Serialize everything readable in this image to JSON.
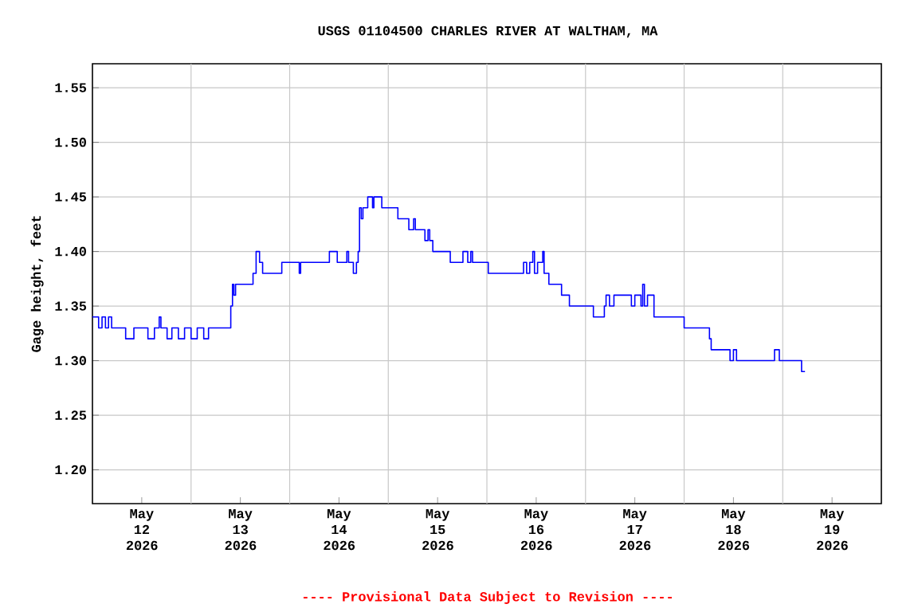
{
  "chart_data": {
    "type": "step",
    "title": "USGS 01104500 CHARLES RIVER AT WALTHAM, MA",
    "ylabel": "Gage height, feet",
    "annotations": [
      "---- Provisional Data Subject to Revision ----"
    ],
    "xlim": [
      "2026-05-12T00:00",
      "2026-05-20T00:00"
    ],
    "xticks": [
      {
        "value": "2026-05-12T12:00",
        "label": "May 12 2026"
      },
      {
        "value": "2026-05-13T12:00",
        "label": "May 13 2026"
      },
      {
        "value": "2026-05-14T12:00",
        "label": "May 14 2026"
      },
      {
        "value": "2026-05-15T12:00",
        "label": "May 15 2026"
      },
      {
        "value": "2026-05-16T12:00",
        "label": "May 16 2026"
      },
      {
        "value": "2026-05-17T12:00",
        "label": "May 17 2026"
      },
      {
        "value": "2026-05-18T12:00",
        "label": "May 18 2026"
      },
      {
        "value": "2026-05-19T12:00",
        "label": "May 19 2026"
      },
      {
        "value": "2026-05-13T00:00",
        "label": null
      },
      {
        "value": "2026-05-14T00:00",
        "label": null
      },
      {
        "value": "2026-05-15T00:00",
        "label": null
      },
      {
        "value": "2026-05-16T00:00",
        "label": null
      },
      {
        "value": "2026-05-17T00:00",
        "label": null
      },
      {
        "value": "2026-05-18T00:00",
        "label": null
      },
      {
        "value": "2026-05-19T00:00",
        "label": null
      }
    ],
    "ylim": [
      1.169,
      1.572
    ],
    "yticks": [
      {
        "value": 1.2,
        "label": "1.20"
      },
      1.25,
      {
        "value": 1.3,
        "label": "1.30"
      },
      1.35,
      {
        "value": 1.4,
        "label": "1.40"
      },
      1.45,
      {
        "value": 1.5,
        "label": "1.50"
      },
      1.55
    ],
    "grid": true,
    "line_style": "solid",
    "series": [
      {
        "color": "#0000ff",
        "x": [
          "2026-05-12T00:00",
          "2026-05-12T01:30",
          "2026-05-12T02:20",
          "2026-05-12T03:10",
          "2026-05-12T03:55",
          "2026-05-12T04:40",
          "2026-05-12T08:05",
          "2026-05-12T10:05",
          "2026-05-12T13:30",
          "2026-05-12T15:05",
          "2026-05-12T16:15",
          "2026-05-12T16:40",
          "2026-05-12T18:10",
          "2026-05-12T19:20",
          "2026-05-12T20:55",
          "2026-05-12T22:25",
          "2026-05-13T00:00",
          "2026-05-13T01:30",
          "2026-05-13T03:05",
          "2026-05-13T04:15",
          "2026-05-13T09:40",
          "2026-05-13T10:05",
          "2026-05-13T10:25",
          "2026-05-13T10:50",
          "2026-05-13T15:05",
          "2026-05-13T15:50",
          "2026-05-13T16:40",
          "2026-05-13T17:25",
          "2026-05-13T22:05",
          "2026-05-14T02:20",
          "2026-05-14T02:40",
          "2026-05-14T09:40",
          "2026-05-14T11:35",
          "2026-05-14T13:55",
          "2026-05-14T14:20",
          "2026-05-14T15:30",
          "2026-05-14T16:15",
          "2026-05-14T16:40",
          "2026-05-14T17:00",
          "2026-05-14T17:25",
          "2026-05-14T17:50",
          "2026-05-14T19:00",
          "2026-05-14T20:10",
          "2026-05-14T20:30",
          "2026-05-14T22:25",
          "2026-05-15T02:20",
          "2026-05-15T05:00",
          "2026-05-15T06:10",
          "2026-05-15T06:35",
          "2026-05-15T08:55",
          "2026-05-15T09:40",
          "2026-05-15T10:05",
          "2026-05-15T10:50",
          "2026-05-15T15:05",
          "2026-05-15T18:10",
          "2026-05-15T19:20",
          "2026-05-15T20:05",
          "2026-05-15T20:30",
          "2026-05-16T00:20",
          "2026-05-16T08:55",
          "2026-05-16T09:40",
          "2026-05-16T10:25",
          "2026-05-16T11:10",
          "2026-05-16T11:35",
          "2026-05-16T12:20",
          "2026-05-16T13:35",
          "2026-05-16T13:55",
          "2026-05-16T15:05",
          "2026-05-16T18:10",
          "2026-05-16T20:05",
          "2026-05-17T01:55",
          "2026-05-17T04:35",
          "2026-05-17T05:00",
          "2026-05-17T05:50",
          "2026-05-17T06:55",
          "2026-05-17T11:10",
          "2026-05-17T12:00",
          "2026-05-17T13:30",
          "2026-05-17T13:55",
          "2026-05-17T14:20",
          "2026-05-17T15:05",
          "2026-05-17T16:40",
          "2026-05-18T00:00",
          "2026-05-18T06:10",
          "2026-05-18T06:35",
          "2026-05-18T11:10",
          "2026-05-18T12:00",
          "2026-05-18T12:45",
          "2026-05-18T22:00",
          "2026-05-18T23:10",
          "2026-05-19T04:35",
          "2026-05-19T05:25"
        ],
        "values": [
          1.34,
          1.33,
          1.34,
          1.33,
          1.34,
          1.33,
          1.32,
          1.33,
          1.32,
          1.33,
          1.34,
          1.33,
          1.32,
          1.33,
          1.32,
          1.33,
          1.32,
          1.33,
          1.32,
          1.33,
          1.35,
          1.37,
          1.36,
          1.37,
          1.38,
          1.4,
          1.39,
          1.38,
          1.39,
          1.38,
          1.39,
          1.4,
          1.39,
          1.4,
          1.39,
          1.38,
          1.39,
          1.4,
          1.44,
          1.43,
          1.44,
          1.45,
          1.44,
          1.45,
          1.44,
          1.43,
          1.42,
          1.43,
          1.42,
          1.41,
          1.42,
          1.41,
          1.4,
          1.39,
          1.4,
          1.39,
          1.4,
          1.39,
          1.38,
          1.39,
          1.38,
          1.39,
          1.4,
          1.38,
          1.39,
          1.4,
          1.38,
          1.37,
          1.36,
          1.35,
          1.34,
          1.35,
          1.36,
          1.35,
          1.36,
          1.35,
          1.36,
          1.35,
          1.37,
          1.35,
          1.36,
          1.34,
          1.33,
          1.32,
          1.31,
          1.3,
          1.31,
          1.3,
          1.31,
          1.3,
          1.29,
          1.29
        ]
      }
    ]
  }
}
